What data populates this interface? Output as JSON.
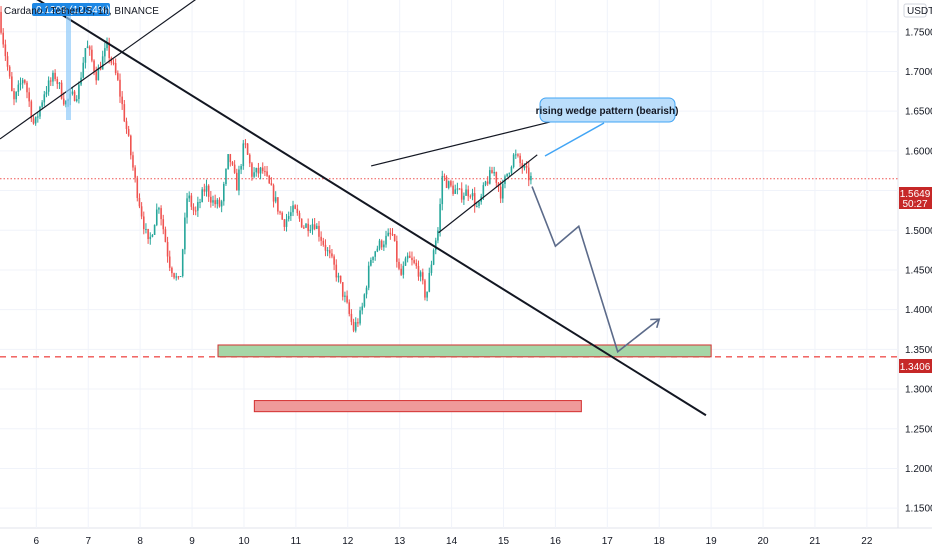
{
  "symbol_header": "Cardano / TetherUS, 1h, BINANCE",
  "header_badge": "0.1209 (12.74%) 2hs",
  "currency_label": "USDT",
  "price_badge": {
    "price": "1.5649",
    "countdown": "50:27",
    "color": "#c62828"
  },
  "support_badge": {
    "price": "1.3406",
    "color": "#c62828"
  },
  "annotation": {
    "text": "rising wedge pattern (bearish)",
    "fill": "#bbdefb",
    "border": "#42a5f5"
  },
  "colors": {
    "up": "#26a69a",
    "down": "#ef5350",
    "support_zone": "#a5d6a7",
    "target_zone": "#ef9a9a",
    "projection": "#5c6b8a"
  },
  "chart_data": {
    "type": "candlestick",
    "title": "Cardano / TetherUS, 1h, BINANCE",
    "x_axis": {
      "type": "date",
      "ticks": [
        "6",
        "7",
        "8",
        "9",
        "10",
        "11",
        "12",
        "13",
        "14",
        "15",
        "16",
        "17",
        "18",
        "19",
        "20",
        "21",
        "22"
      ],
      "range": [
        5.3,
        22.6
      ]
    },
    "y_axis": {
      "ticks": [
        "1.7500",
        "1.7000",
        "1.6500",
        "1.6000",
        "1.5500",
        "1.5000",
        "1.4500",
        "1.4000",
        "1.3500",
        "1.3000",
        "1.2500",
        "1.2000",
        "1.1500"
      ],
      "range": [
        1.125,
        1.79
      ],
      "unit": "USDT"
    },
    "price_path": [
      [
        5.32,
        1.775
      ],
      [
        5.4,
        1.74
      ],
      [
        5.6,
        1.66
      ],
      [
        5.8,
        1.695
      ],
      [
        6.0,
        1.63
      ],
      [
        6.2,
        1.675
      ],
      [
        6.4,
        1.695
      ],
      [
        6.6,
        1.66
      ],
      [
        6.85,
        1.675
      ],
      [
        7.0,
        1.735
      ],
      [
        7.2,
        1.695
      ],
      [
        7.4,
        1.73
      ],
      [
        7.6,
        1.69
      ],
      [
        7.8,
        1.62
      ],
      [
        7.95,
        1.56
      ],
      [
        8.2,
        1.48
      ],
      [
        8.4,
        1.535
      ],
      [
        8.6,
        1.46
      ],
      [
        8.8,
        1.43
      ],
      [
        8.95,
        1.545
      ],
      [
        9.1,
        1.52
      ],
      [
        9.3,
        1.555
      ],
      [
        9.45,
        1.535
      ],
      [
        9.6,
        1.53
      ],
      [
        9.75,
        1.595
      ],
      [
        9.9,
        1.555
      ],
      [
        10.05,
        1.61
      ],
      [
        10.2,
        1.57
      ],
      [
        10.4,
        1.575
      ],
      [
        10.6,
        1.545
      ],
      [
        10.8,
        1.51
      ],
      [
        11.0,
        1.525
      ],
      [
        11.2,
        1.505
      ],
      [
        11.4,
        1.51
      ],
      [
        11.6,
        1.48
      ],
      [
        11.8,
        1.45
      ],
      [
        12.0,
        1.41
      ],
      [
        12.15,
        1.375
      ],
      [
        12.3,
        1.395
      ],
      [
        12.5,
        1.47
      ],
      [
        12.7,
        1.485
      ],
      [
        12.9,
        1.495
      ],
      [
        13.05,
        1.44
      ],
      [
        13.2,
        1.465
      ],
      [
        13.4,
        1.45
      ],
      [
        13.55,
        1.415
      ],
      [
        13.7,
        1.48
      ],
      [
        13.8,
        1.505
      ],
      [
        13.85,
        1.57
      ],
      [
        14.0,
        1.555
      ],
      [
        14.2,
        1.545
      ],
      [
        14.4,
        1.55
      ],
      [
        14.55,
        1.525
      ],
      [
        14.7,
        1.56
      ],
      [
        14.85,
        1.575
      ],
      [
        15.0,
        1.545
      ],
      [
        15.1,
        1.57
      ],
      [
        15.25,
        1.595
      ],
      [
        15.4,
        1.58
      ],
      [
        15.55,
        1.565
      ]
    ],
    "trend_lines": [
      {
        "from": [
          "5.3",
          "1.820"
        ],
        "to": [
          "18.9",
          "1.267"
        ],
        "style": "thick"
      },
      {
        "from": [
          "5.3",
          "1.615"
        ],
        "to": [
          "9.7",
          "1.820"
        ],
        "style": "thin"
      },
      {
        "from": [
          "12.45",
          "1.581"
        ],
        "to": [
          "16.0",
          "1.638"
        ],
        "style": "thin"
      },
      {
        "from": [
          "13.75",
          "1.497"
        ],
        "to": [
          "15.65",
          "1.595"
        ],
        "style": "thin"
      }
    ],
    "zones": [
      {
        "name": "support",
        "x": [
          "9.5",
          "19.0"
        ],
        "y": [
          "1.3406",
          "1.3555"
        ]
      },
      {
        "name": "target",
        "x": [
          "10.2",
          "16.5"
        ],
        "y": [
          "1.2715",
          "1.2855"
        ]
      }
    ],
    "horizontal_levels": [
      {
        "name": "current_price",
        "value": "1.5649",
        "style": "dotted"
      },
      {
        "name": "support_level",
        "value": "1.3406",
        "style": "dashed"
      }
    ],
    "projection_path": [
      [
        "15.55",
        "1.555"
      ],
      [
        "16.0",
        "1.480"
      ],
      [
        "16.45",
        "1.505"
      ],
      [
        "17.2",
        "1.347"
      ],
      [
        "18.0",
        "1.388"
      ]
    ]
  }
}
